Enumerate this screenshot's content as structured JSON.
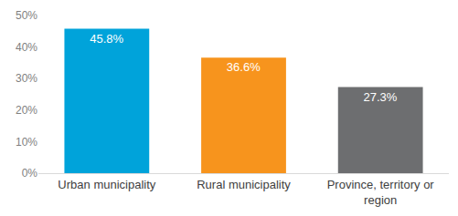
{
  "chart_data": {
    "type": "bar",
    "categories": [
      "Urban municipality",
      "Rural municipality",
      "Province, territory or region"
    ],
    "values": [
      45.8,
      36.6,
      27.3
    ],
    "value_labels": [
      "45.8%",
      "36.6%",
      "27.3%"
    ],
    "colors": [
      "#00a3da",
      "#f7941d",
      "#6d6e70"
    ],
    "ylim": [
      0,
      50
    ],
    "yticks": [
      {
        "value": 0,
        "label": "0%"
      },
      {
        "value": 10,
        "label": "10%"
      },
      {
        "value": 20,
        "label": "20%"
      },
      {
        "value": 30,
        "label": "30%"
      },
      {
        "value": 40,
        "label": "40%"
      },
      {
        "value": 50,
        "label": "50%"
      }
    ],
    "grid": false,
    "data_labels": true
  }
}
